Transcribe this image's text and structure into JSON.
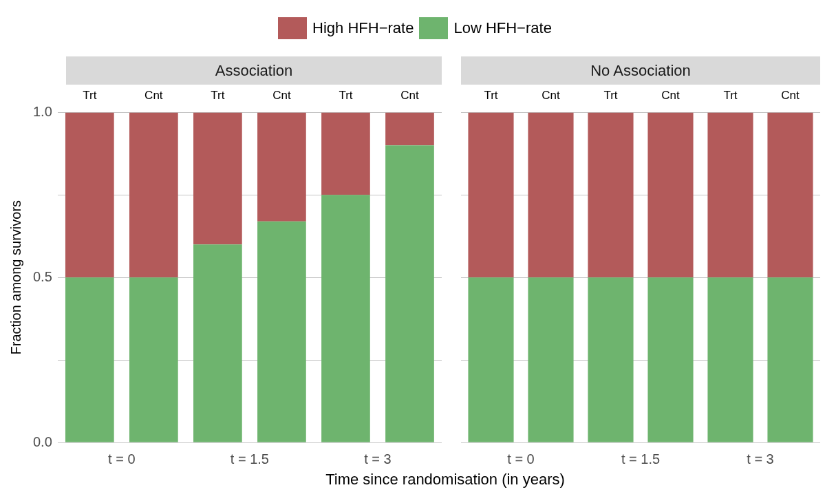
{
  "chart_data": [
    {
      "type": "bar",
      "title": "Association",
      "xlabel": "Time since randomisation (in years)",
      "ylabel": "Fraction among survivors",
      "categories": [
        "Trt",
        "Cnt",
        "Trt",
        "Cnt",
        "Trt",
        "Cnt"
      ],
      "stacked": true,
      "series": [
        {
          "name": "Low HFH−rate",
          "color": "#6eb46e",
          "values": [
            0.5,
            0.5,
            0.6,
            0.67,
            0.75,
            0.9
          ]
        },
        {
          "name": "High HFH−rate",
          "color": "#b35a5a",
          "values": [
            0.5,
            0.5,
            0.4,
            0.33,
            0.25,
            0.1
          ]
        }
      ],
      "annotations": [
        "t = 0",
        "t = 1.5",
        "t = 3"
      ],
      "ylim": [
        0,
        1
      ],
      "yticks": [
        {
          "value": 0,
          "label": "0.0"
        },
        {
          "value": 0.25,
          "label": null
        },
        {
          "value": 0.5,
          "label": "0.5"
        },
        {
          "value": 0.75,
          "label": null
        },
        {
          "value": 1,
          "label": "1.0"
        }
      ],
      "grid": "y",
      "legend": "top"
    },
    {
      "type": "bar",
      "title": "No Association",
      "categories": [
        "Trt",
        "Cnt",
        "Trt",
        "Cnt",
        "Trt",
        "Cnt"
      ],
      "stacked": true,
      "series": [
        {
          "color": "#6eb46e",
          "values": [
            0.5,
            0.5,
            0.5,
            0.5,
            0.5,
            0.5
          ]
        },
        {
          "color": "#b35a5a",
          "values": [
            0.5,
            0.5,
            0.5,
            0.5,
            0.5,
            0.5
          ]
        }
      ],
      "annotations": [
        "t = 0",
        "t = 1.5",
        "t = 3"
      ],
      "ylim": [
        0,
        1
      ],
      "yticks": [
        0,
        0.25,
        0.5,
        0.75,
        1
      ],
      "grid": "y",
      "tick_labels": "x"
    }
  ]
}
